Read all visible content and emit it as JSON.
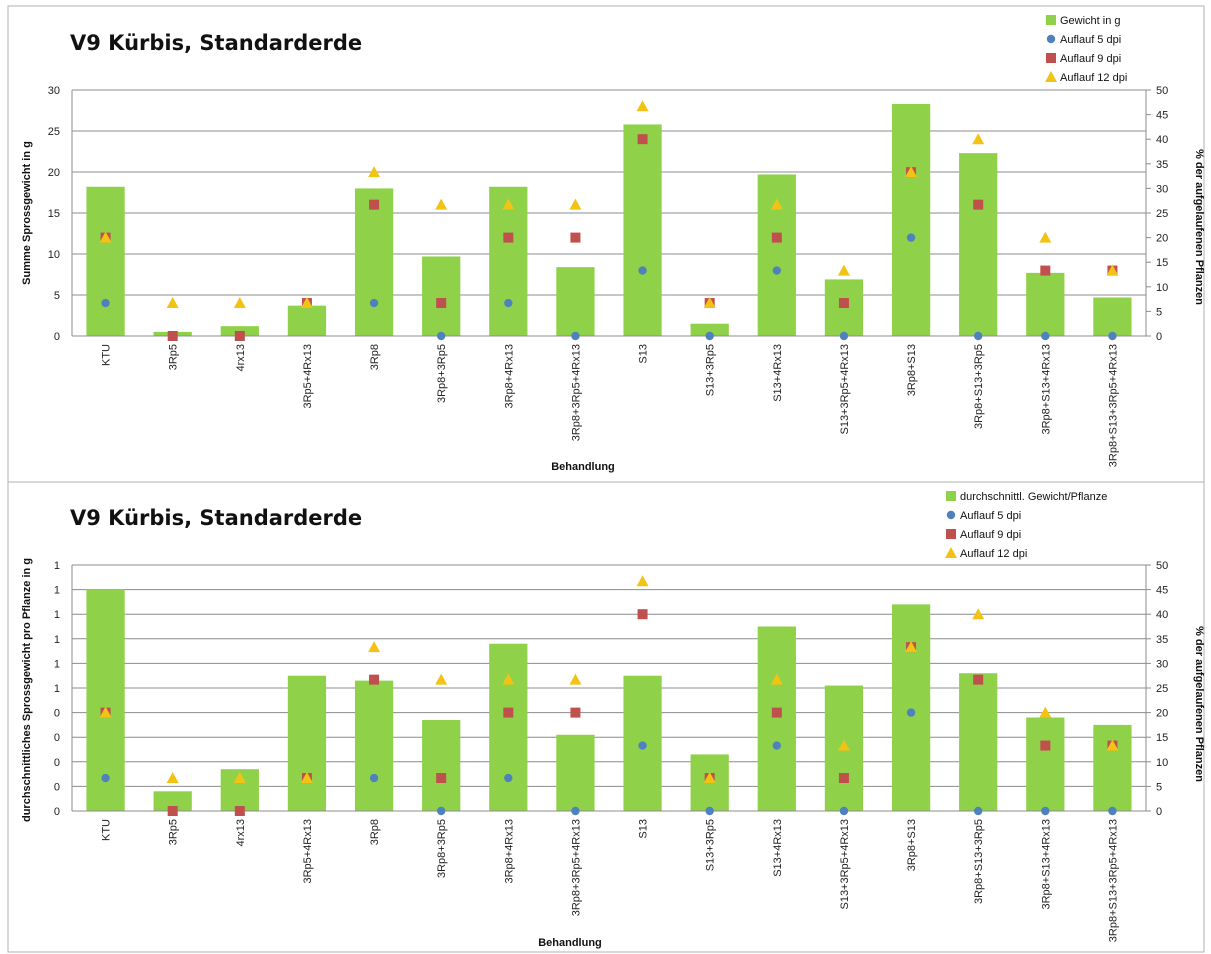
{
  "chart_data": [
    {
      "type": "bar",
      "title": "V9 Kürbis, Standarderde",
      "xlabel": "Behandlung",
      "ylabel": "Summe Sprossgewicht in g",
      "y2label": "% der aufgelaufenen Pflanzen",
      "ylim": [
        0,
        30
      ],
      "yticks": [
        "0",
        "5",
        "10",
        "15",
        "20",
        "25",
        "30"
      ],
      "y2lim": [
        0,
        50
      ],
      "y2ticks": [
        "0",
        "5",
        "10",
        "15",
        "20",
        "25",
        "30",
        "35",
        "40",
        "45",
        "50"
      ],
      "legend_position": "top-right",
      "grid": true,
      "categories": [
        "KTU",
        "3Rp5",
        "4rx13",
        "3Rp5+4Rx13",
        "3Rp8",
        "3Rp8+3Rp5",
        "3Rp8+4Rx13",
        "3Rp8+3Rp5+4Rx13",
        "S13",
        "S13+3Rp5",
        "S13+4Rx13",
        "S13+3Rp5+4Rx13",
        "3Rp8+S13",
        "3Rp8+S13+3Rp5",
        "3Rp8+S13+4Rx13",
        "3Rp8+S13+3Rp5+4Rx13"
      ],
      "series": [
        {
          "name": "Gewicht in g",
          "kind": "bar",
          "axis": "left",
          "color": "#8fd24a",
          "values": [
            18.2,
            0.5,
            1.2,
            3.7,
            18.0,
            9.7,
            18.2,
            8.4,
            25.8,
            1.5,
            19.7,
            6.9,
            28.3,
            22.3,
            7.7,
            4.7
          ]
        },
        {
          "name": "Auflauf 5 dpi",
          "kind": "marker",
          "marker": "circle",
          "axis": "right",
          "color": "#4f81bd",
          "values": [
            6.7,
            0,
            0,
            6.7,
            6.7,
            0,
            6.7,
            0,
            13.3,
            0,
            13.3,
            0,
            20.0,
            0,
            0,
            0
          ]
        },
        {
          "name": "Auflauf 9 dpi",
          "kind": "marker",
          "marker": "square",
          "axis": "right",
          "color": "#c0504d",
          "values": [
            20.0,
            0,
            0,
            6.7,
            26.7,
            6.7,
            20.0,
            20.0,
            40.0,
            6.7,
            20.0,
            6.7,
            33.3,
            26.7,
            13.3,
            13.3
          ]
        },
        {
          "name": "Auflauf 12 dpi",
          "kind": "marker",
          "marker": "triangle",
          "axis": "right",
          "color": "#f2c314",
          "values": [
            20.0,
            6.7,
            6.7,
            6.7,
            33.3,
            26.7,
            26.7,
            26.7,
            46.7,
            6.7,
            26.7,
            13.3,
            33.3,
            40.0,
            20.0,
            13.3
          ]
        }
      ]
    },
    {
      "type": "bar",
      "title": "V9 Kürbis, Standarderde",
      "xlabel": "Behandlung",
      "ylabel": "durchschnittliches Sprossgewicht pro Pflanze in g",
      "y2label": "% der aufgelaufenen Pflanzen",
      "ylim": [
        0,
        1
      ],
      "yticks": [
        "0",
        "0",
        "0",
        "0",
        "0",
        "1",
        "1",
        "1",
        "1",
        "1",
        "1"
      ],
      "y2lim": [
        0,
        50
      ],
      "y2ticks": [
        "0",
        "5",
        "10",
        "15",
        "20",
        "25",
        "30",
        "35",
        "40",
        "45",
        "50"
      ],
      "legend_position": "top-right",
      "grid": true,
      "categories": [
        "KTU",
        "3Rp5",
        "4rx13",
        "3Rp5+4Rx13",
        "3Rp8",
        "3Rp8+3Rp5",
        "3Rp8+4Rx13",
        "3Rp8+3Rp5+4Rx13",
        "S13",
        "S13+3Rp5",
        "S13+4Rx13",
        "S13+3Rp5+4Rx13",
        "3Rp8+S13",
        "3Rp8+S13+3Rp5",
        "3Rp8+S13+4Rx13",
        "3Rp8+S13+3Rp5+4Rx13"
      ],
      "series": [
        {
          "name": "durchschnittl. Gewicht/Pflanze",
          "kind": "bar",
          "axis": "left",
          "color": "#8fd24a",
          "values": [
            0.9,
            0.08,
            0.17,
            0.55,
            0.53,
            0.37,
            0.68,
            0.31,
            0.55,
            0.23,
            0.75,
            0.51,
            0.84,
            0.56,
            0.38,
            0.35
          ]
        },
        {
          "name": "Auflauf 5 dpi",
          "kind": "marker",
          "marker": "circle",
          "axis": "right",
          "color": "#4f81bd",
          "values": [
            6.7,
            0,
            0,
            6.7,
            6.7,
            0,
            6.7,
            0,
            13.3,
            0,
            13.3,
            0,
            20.0,
            0,
            0,
            0
          ]
        },
        {
          "name": "Auflauf 9 dpi",
          "kind": "marker",
          "marker": "square",
          "axis": "right",
          "color": "#c0504d",
          "values": [
            20.0,
            0,
            0,
            6.7,
            26.7,
            6.7,
            20.0,
            20.0,
            40.0,
            6.7,
            20.0,
            6.7,
            33.3,
            26.7,
            13.3,
            13.3
          ]
        },
        {
          "name": "Auflauf 12 dpi",
          "kind": "marker",
          "marker": "triangle",
          "axis": "right",
          "color": "#f2c314",
          "values": [
            20.0,
            6.7,
            6.7,
            6.7,
            33.3,
            26.7,
            26.7,
            26.7,
            46.7,
            6.7,
            26.7,
            13.3,
            33.3,
            40.0,
            20.0,
            13.3
          ]
        }
      ]
    }
  ]
}
